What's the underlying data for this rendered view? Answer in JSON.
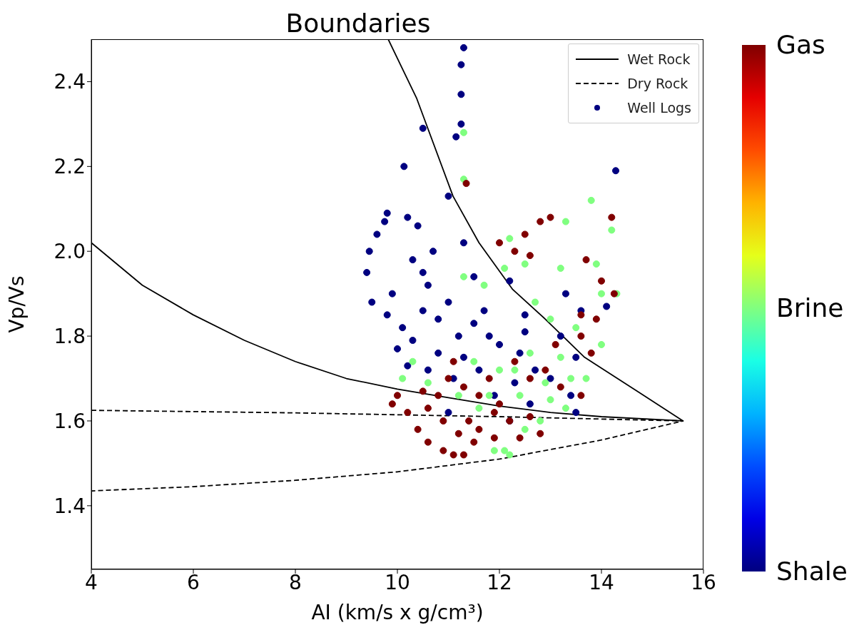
{
  "chart_data": {
    "type": "scatter",
    "title": "Boundaries",
    "xlabel": "AI (km/s x g/cm³)",
    "ylabel": "Vp/Vs",
    "xlim": [
      4,
      16
    ],
    "xticks": [
      4,
      6,
      8,
      10,
      12,
      14,
      16
    ],
    "ylim": [
      1.25,
      2.5
    ],
    "yticks": [
      1.4,
      1.6,
      1.8,
      {
        "value": 2,
        "label": "2.0"
      },
      2.2,
      2.4
    ],
    "grid": false,
    "legend": "top right",
    "clim": [
      0,
      2
    ],
    "cticks": [
      {
        "value": 0,
        "label": "Shale"
      },
      {
        "value": 1,
        "label": "Brine"
      },
      {
        "value": 2,
        "label": "Gas"
      }
    ],
    "series": [
      {
        "name": "Wet Rock",
        "type": "line",
        "color": "#000000",
        "line_style": "solid",
        "marker": "none",
        "x": [
          4,
          5,
          6,
          7,
          8,
          9,
          10,
          11,
          12,
          13,
          14,
          15.6,
          14.7,
          13.67,
          12.9,
          12.26,
          11.6,
          11.09,
          10.38,
          10.1,
          9.82
        ],
        "values": [
          2.02,
          1.92,
          1.85,
          1.79,
          1.74,
          1.7,
          1.675,
          1.655,
          1.635,
          1.62,
          1.61,
          1.6,
          1.67,
          1.75,
          1.84,
          1.91,
          2.02,
          2.13,
          2.36,
          2.43,
          2.5
        ]
      },
      {
        "name": "Dry Rock",
        "type": "line",
        "color": "#000000",
        "line_style": "dashed",
        "marker": "none",
        "x": [
          4,
          8,
          12,
          15.6,
          14,
          12,
          10,
          8,
          6,
          4
        ],
        "values": [
          1.625,
          1.619,
          1.61,
          1.6,
          1.555,
          1.51,
          1.48,
          1.46,
          1.445,
          1.435
        ]
      },
      {
        "name": "Well Logs",
        "marker": "circle",
        "colors": [
          "#000080",
          "#000080",
          "#000080",
          "#000080",
          "#000080",
          "#000080",
          "#000080",
          "#000080",
          "#000080",
          "#000080",
          "#000080",
          "#000080",
          "#000080",
          "#000080",
          "#000080",
          "#000080",
          "#000080",
          "#000080",
          "#000080",
          "#000080",
          "#000080",
          "#000080",
          "#000080",
          "#000080",
          "#000080",
          "#000080",
          "#000080",
          "#000080",
          "#000080",
          "#000080",
          "#000080",
          "#000080",
          "#000080",
          "#000080",
          "#000080",
          "#000080",
          "#000080",
          "#000080",
          "#000080",
          "#000080",
          "#000080",
          "#000080",
          "#000080",
          "#000080",
          "#000080",
          "#000080",
          "#000080",
          "#000080",
          "#000080",
          "#000080",
          "#000080",
          "#000080",
          "#000080",
          "#000080",
          "#000080",
          "#000080",
          "#000080",
          "#000080",
          "#000080",
          "#000080",
          "#80ff80",
          "#80ff80",
          "#80ff80",
          "#80ff80",
          "#80ff80",
          "#80ff80",
          "#80ff80",
          "#80ff80",
          "#80ff80",
          "#80ff80",
          "#80ff80",
          "#80ff80",
          "#80ff80",
          "#80ff80",
          "#80ff80",
          "#80ff80",
          "#80ff80",
          "#80ff80",
          "#80ff80",
          "#80ff80",
          "#80ff80",
          "#80ff80",
          "#80ff80",
          "#80ff80",
          "#80ff80",
          "#80ff80",
          "#80ff80",
          "#80ff80",
          "#80ff80",
          "#80ff80",
          "#80ff80",
          "#80ff80",
          "#80ff80",
          "#80ff80",
          "#80ff80",
          "#80ff80",
          "#80ff80",
          "#80ff80",
          "#80ff80",
          "#80ff80",
          "#800000",
          "#800000",
          "#800000",
          "#800000",
          "#800000",
          "#800000",
          "#800000",
          "#800000",
          "#800000",
          "#800000",
          "#800000",
          "#800000",
          "#800000",
          "#800000",
          "#800000",
          "#800000",
          "#800000",
          "#800000",
          "#800000",
          "#800000",
          "#800000",
          "#800000",
          "#800000",
          "#800000",
          "#800000",
          "#800000",
          "#800000",
          "#800000",
          "#800000",
          "#800000",
          "#800000",
          "#800000",
          "#800000",
          "#800000",
          "#800000",
          "#800000",
          "#800000",
          "#800000",
          "#800000",
          "#800000",
          "#800000",
          "#800000",
          "#800000",
          "#800000",
          "#800000",
          "#800000",
          "#800000",
          "#800000",
          "#800000"
        ],
        "x": [
          11.3,
          11.25,
          11.25,
          11.25,
          11.15,
          10.5,
          10.13,
          14.28,
          11.0,
          9.8,
          9.75,
          9.6,
          9.45,
          9.4,
          9.5,
          9.8,
          9.9,
          10.2,
          10.4,
          10.3,
          10.5,
          10.7,
          10.6,
          11.3,
          11.5,
          12.2,
          12.5,
          13.3,
          13.6,
          14.1,
          13.2,
          13.5,
          10.0,
          10.1,
          10.5,
          10.8,
          11.0,
          11.2,
          11.5,
          11.8,
          12.0,
          11.3,
          10.8,
          11.6,
          12.4,
          12.7,
          12.3,
          13.0,
          13.4,
          11.9,
          11.1,
          10.6,
          10.2,
          12.6,
          13.5,
          11.0,
          12.2,
          12.5,
          11.7,
          10.3,
          11.3,
          11.3,
          11.3,
          12.2,
          13.3,
          13.8,
          14.2,
          14.3,
          14.0,
          13.9,
          13.2,
          12.5,
          12.1,
          11.7,
          12.7,
          13.0,
          13.5,
          14.0,
          13.2,
          13.7,
          12.6,
          12.0,
          12.3,
          11.5,
          11.2,
          10.3,
          10.1,
          10.6,
          11.8,
          12.4,
          13.0,
          12.8,
          12.5,
          12.1,
          11.9,
          12.2,
          13.3,
          11.6,
          12.9,
          13.4,
          11.35,
          12.0,
          12.3,
          12.5,
          12.8,
          13.0,
          12.6,
          13.7,
          14.2,
          14.0,
          14.25,
          13.6,
          13.9,
          13.6,
          13.8,
          13.1,
          12.9,
          13.2,
          13.6,
          12.6,
          10.0,
          9.9,
          10.2,
          10.4,
          10.6,
          10.9,
          11.1,
          11.3,
          11.5,
          11.9,
          12.2,
          12.4,
          10.8,
          11.0,
          11.3,
          11.6,
          11.9,
          11.4,
          10.9,
          10.6,
          11.2,
          11.6,
          12.0,
          12.6,
          12.8,
          11.8,
          11.1,
          12.3,
          10.5
        ],
        "values": [
          2.48,
          2.44,
          2.37,
          2.3,
          2.27,
          2.29,
          2.2,
          2.19,
          2.13,
          2.09,
          2.07,
          2.04,
          2.0,
          1.95,
          1.88,
          1.85,
          1.9,
          2.08,
          2.06,
          1.98,
          1.95,
          2.0,
          1.92,
          2.02,
          1.94,
          1.93,
          1.85,
          1.9,
          1.86,
          1.87,
          1.8,
          1.75,
          1.77,
          1.82,
          1.86,
          1.84,
          1.88,
          1.8,
          1.83,
          1.8,
          1.78,
          1.75,
          1.76,
          1.72,
          1.76,
          1.72,
          1.69,
          1.7,
          1.66,
          1.66,
          1.7,
          1.72,
          1.73,
          1.64,
          1.62,
          1.62,
          1.6,
          1.81,
          1.86,
          1.79,
          2.28,
          2.17,
          1.94,
          2.03,
          2.07,
          2.12,
          2.05,
          1.9,
          1.9,
          1.97,
          1.96,
          1.97,
          1.96,
          1.92,
          1.88,
          1.84,
          1.82,
          1.78,
          1.75,
          1.7,
          1.76,
          1.72,
          1.72,
          1.74,
          1.66,
          1.74,
          1.7,
          1.69,
          1.66,
          1.66,
          1.65,
          1.6,
          1.58,
          1.53,
          1.53,
          1.52,
          1.63,
          1.63,
          1.69,
          1.7,
          2.16,
          2.02,
          2.0,
          2.04,
          2.07,
          2.08,
          1.99,
          1.98,
          2.08,
          1.93,
          1.9,
          1.85,
          1.84,
          1.8,
          1.76,
          1.78,
          1.72,
          1.68,
          1.66,
          1.7,
          1.66,
          1.64,
          1.62,
          1.58,
          1.55,
          1.53,
          1.52,
          1.52,
          1.55,
          1.56,
          1.6,
          1.56,
          1.66,
          1.7,
          1.68,
          1.66,
          1.62,
          1.6,
          1.6,
          1.63,
          1.57,
          1.58,
          1.64,
          1.61,
          1.57,
          1.7,
          1.74,
          1.74,
          1.67
        ],
        "cvalues": [
          0,
          0,
          0,
          0,
          0,
          0,
          0,
          0,
          0,
          0,
          0,
          0,
          0,
          0,
          0,
          0,
          0,
          0,
          0,
          0,
          0,
          0,
          0,
          0,
          0,
          0,
          0,
          0,
          0,
          0,
          0,
          0,
          0,
          0,
          0,
          0,
          0,
          0,
          0,
          0,
          0,
          0,
          0,
          0,
          0,
          0,
          0,
          0,
          0,
          0,
          0,
          0,
          0,
          0,
          0,
          0,
          0,
          0,
          0,
          0,
          1,
          1,
          1,
          1,
          1,
          1,
          1,
          1,
          1,
          1,
          1,
          1,
          1,
          1,
          1,
          1,
          1,
          1,
          1,
          1,
          1,
          1,
          1,
          1,
          1,
          1,
          1,
          1,
          1,
          1,
          1,
          1,
          1,
          1,
          1,
          1,
          1,
          1,
          1,
          1,
          2,
          2,
          2,
          2,
          2,
          2,
          2,
          2,
          2,
          2,
          2,
          2,
          2,
          2,
          2,
          2,
          2,
          2,
          2,
          2,
          2,
          2,
          2,
          2,
          2,
          2,
          2,
          2,
          2,
          2,
          2,
          2,
          2,
          2,
          2,
          2,
          2,
          2,
          2,
          2,
          2,
          2,
          2,
          2,
          2,
          2,
          2,
          2,
          2
        ]
      }
    ]
  }
}
